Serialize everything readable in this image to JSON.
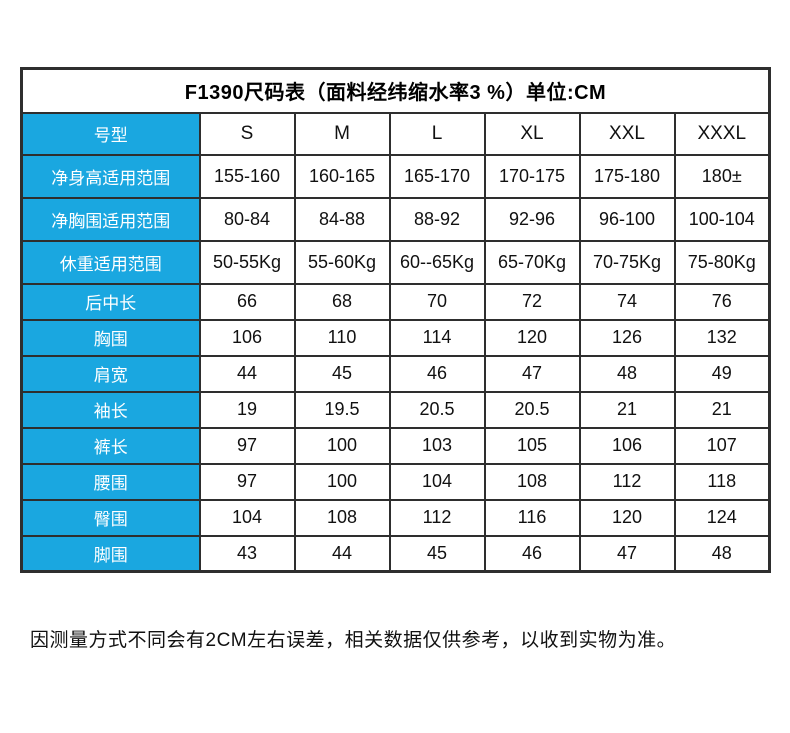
{
  "colors": {
    "header_blue": "#1aa7e0",
    "border": "#2e2e2e",
    "text": "#111111",
    "background": "#ffffff"
  },
  "chart_data": {
    "type": "table",
    "title": "F1390尺码表（面料经纬缩水率3 %）单位:CM",
    "corner_label": "号型",
    "columns": [
      "S",
      "M",
      "L",
      "XL",
      "XXL",
      "XXXL"
    ],
    "rows": [
      {
        "label": "净身高适用范围",
        "values": [
          "155-160",
          "160-165",
          "165-170",
          "170-175",
          "175-180",
          "180±"
        ]
      },
      {
        "label": "净胸围适用范围",
        "values": [
          "80-84",
          "84-88",
          "88-92",
          "92-96",
          "96-100",
          "100-104"
        ]
      },
      {
        "label": "休重适用范围",
        "values": [
          "50-55Kg",
          "55-60Kg",
          "60--65Kg",
          "65-70Kg",
          "70-75Kg",
          "75-80Kg"
        ]
      },
      {
        "label": "后中长",
        "values": [
          "66",
          "68",
          "70",
          "72",
          "74",
          "76"
        ]
      },
      {
        "label": "胸围",
        "values": [
          "106",
          "110",
          "114",
          "120",
          "126",
          "132"
        ]
      },
      {
        "label": "肩宽",
        "values": [
          "44",
          "45",
          "46",
          "47",
          "48",
          "49"
        ]
      },
      {
        "label": "袖长",
        "values": [
          "19",
          "19.5",
          "20.5",
          "20.5",
          "21",
          "21"
        ]
      },
      {
        "label": "裤长",
        "values": [
          "97",
          "100",
          "103",
          "105",
          "106",
          "107"
        ]
      },
      {
        "label": "腰围",
        "values": [
          "97",
          "100",
          "104",
          "108",
          "112",
          "118"
        ]
      },
      {
        "label": "臀围",
        "values": [
          "104",
          "108",
          "112",
          "116",
          "120",
          "124"
        ]
      },
      {
        "label": "脚围",
        "values": [
          "43",
          "44",
          "45",
          "46",
          "47",
          "48"
        ]
      }
    ],
    "footnote": "因测量方式不同会有2CM左右误差，相关数据仅供参考，以收到实物为准。",
    "layout": {
      "tall_row_count": 3,
      "grid": true,
      "legend": "none"
    }
  }
}
